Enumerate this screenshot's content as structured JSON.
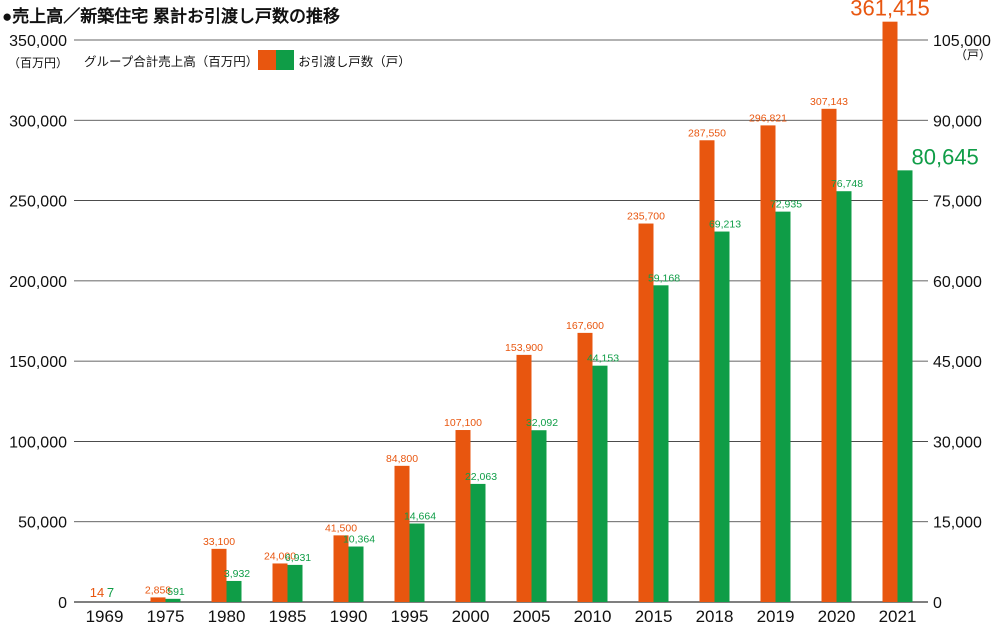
{
  "title": "●売上高／新築住宅 累計お引渡し戸数の推移",
  "left_unit": "（百万円）",
  "right_unit": "（戸）",
  "legend": {
    "sales_label": "グループ合計売上高（百万円）",
    "units_label": "お引渡し戸数（戸）"
  },
  "colors": {
    "sales": "#e8560f",
    "units": "#0f9d47",
    "grid": "#333333",
    "text": "#111111"
  },
  "chart_data": {
    "type": "bar",
    "title": "売上高／新築住宅 累計お引渡し戸数の推移",
    "categories": [
      "1969",
      "1975",
      "1980",
      "1985",
      "1990",
      "1995",
      "2000",
      "2005",
      "2010",
      "2015",
      "2018",
      "2019",
      "2020",
      "2021"
    ],
    "series": [
      {
        "name": "グループ合計売上高（百万円）",
        "axis": "left",
        "values": [
          14,
          2858,
          33100,
          24000,
          41500,
          84800,
          107100,
          153900,
          167600,
          235700,
          287550,
          296821,
          307143,
          361415
        ],
        "labels": [
          "14",
          "2,858",
          "33,100",
          "24,000",
          "41,500",
          "84,800",
          "107,100",
          "153,900",
          "167,600",
          "235,700",
          "287,550",
          "296,821",
          "307,143",
          "361,415"
        ]
      },
      {
        "name": "お引渡し戸数（戸）",
        "axis": "right",
        "values": [
          7,
          591,
          3932,
          6931,
          10364,
          14664,
          22063,
          32092,
          44153,
          59168,
          69213,
          72935,
          76748,
          80645
        ],
        "labels": [
          "7",
          "591",
          "3,932",
          "6,931",
          "10,364",
          "14,664",
          "22,063",
          "32,092",
          "44,153",
          "59,168",
          "69,213",
          "72,935",
          "76,748",
          "80,645"
        ]
      }
    ],
    "y_left": {
      "label": "（百万円）",
      "range": [
        0,
        350000
      ],
      "ticks": [
        "0",
        "50,000",
        "100,000",
        "150,000",
        "200,000",
        "250,000",
        "300,000",
        "350,000"
      ]
    },
    "y_right": {
      "label": "（戸）",
      "range": [
        0,
        105000
      ],
      "ticks": [
        "0",
        "15,000",
        "30,000",
        "45,000",
        "60,000",
        "75,000",
        "90,000",
        "105,000"
      ]
    },
    "grid": true,
    "legend_position": "top-left"
  }
}
